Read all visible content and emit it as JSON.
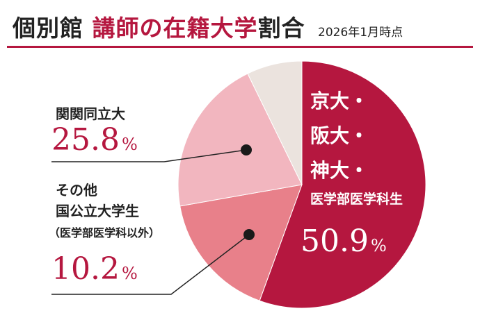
{
  "title": {
    "part1": "個別館",
    "part2": "講師の在籍大学",
    "part3": "割合",
    "date": "2026年1月時点"
  },
  "colors": {
    "accent": "#b5173f"
  },
  "chart_data": {
    "type": "pie",
    "title": "個別館 講師の在籍大学割合",
    "slices": [
      {
        "label": "京大・阪大・神大・医学部医学科生",
        "value": 50.9,
        "color": "#b5173f"
      },
      {
        "label": "その他国公立大学生(医学部医学科以外)",
        "value": 10.2,
        "color": "#e8808a"
      },
      {
        "label": "関関同立大",
        "value": 25.8,
        "color": "#f2b6bf"
      },
      {
        "label": "その他",
        "value": 13.1,
        "color": "#ebe3de"
      }
    ]
  },
  "labels": {
    "main": {
      "l1": "京大・",
      "l2": "阪大・",
      "l3": "神大・",
      "l4": "医学部医学科生",
      "value": "50.9",
      "pct": "%"
    },
    "kankan": {
      "name": "関関同立大",
      "value": "25.8",
      "pct": "%"
    },
    "other": {
      "l1": "その他",
      "l2": "国公立大学生",
      "l3": "（医学部医学科以外）",
      "value": "10.2",
      "pct": "%"
    }
  }
}
